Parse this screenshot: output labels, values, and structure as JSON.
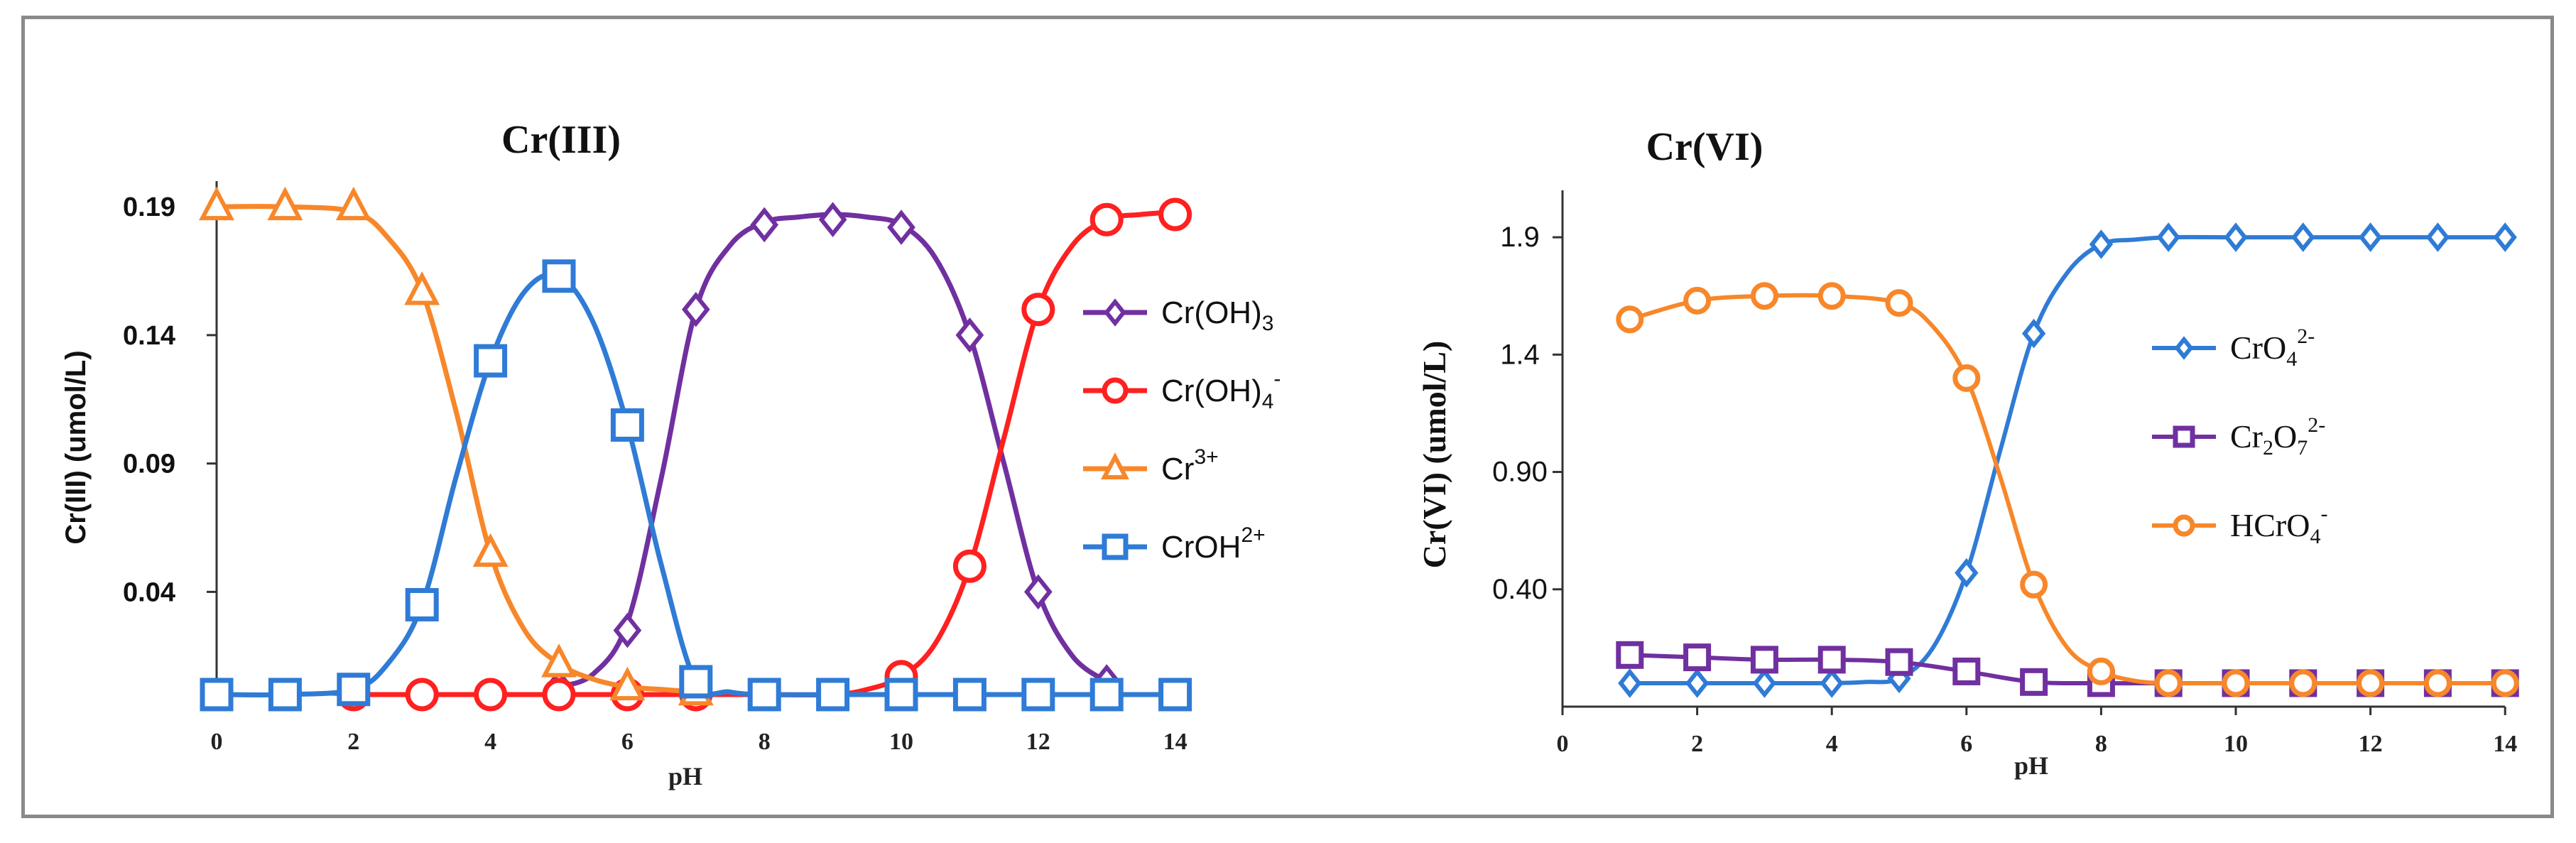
{
  "chart_data": [
    {
      "type": "line",
      "title": "Cr(III)",
      "xlabel": "pH",
      "ylabel": "Cr(III) (umol/L)",
      "xlim": [
        0,
        14
      ],
      "ylim": [
        0.0,
        0.2
      ],
      "x_ticks": [
        "0",
        "2",
        "4",
        "6",
        "8",
        "10",
        "12",
        "14"
      ],
      "y_ticks": [
        {
          "value": 0.04,
          "label": "0.04"
        },
        {
          "value": 0.09,
          "label": "0.09"
        },
        {
          "value": 0.14,
          "label": "0.14"
        },
        {
          "value": 0.19,
          "label": "0.19"
        }
      ],
      "legend_position": "right",
      "series": [
        {
          "name": "Cr(OH)3",
          "label_main": "Cr(OH)",
          "label_sub": "3",
          "label_sup": "",
          "color": "#7030a0",
          "marker": "diamond",
          "x": [
            0,
            1,
            2,
            3,
            4,
            5,
            6,
            7,
            8,
            9,
            10,
            11,
            12,
            13,
            14
          ],
          "y": [
            null,
            null,
            null,
            null,
            null,
            0.003,
            0.025,
            0.15,
            0.183,
            0.185,
            0.182,
            0.14,
            0.04,
            0.005,
            null
          ],
          "smooth_x": [
            5,
            5.5,
            6,
            6.5,
            7,
            7.5,
            8,
            8.5,
            9,
            9.5,
            10,
            10.5,
            11,
            11.5,
            12,
            12.5,
            13
          ],
          "smooth_y": [
            0.003,
            0.008,
            0.028,
            0.085,
            0.15,
            0.175,
            0.184,
            0.186,
            0.187,
            0.186,
            0.183,
            0.17,
            0.14,
            0.09,
            0.04,
            0.015,
            0.005
          ]
        },
        {
          "name": "Cr(OH)4-",
          "label_main": "Cr(OH)",
          "label_sub": "4",
          "label_sup": "-",
          "color": "#ff2020",
          "marker": "circle",
          "x": [
            0,
            1,
            2,
            3,
            4,
            5,
            6,
            7,
            8,
            9,
            10,
            11,
            12,
            13,
            14
          ],
          "y": [
            0,
            0,
            0,
            0,
            0,
            0,
            0,
            0,
            0,
            0,
            0.007,
            0.05,
            0.15,
            0.185,
            0.187
          ],
          "smooth_x": [
            2,
            3,
            4,
            5,
            6,
            7,
            8,
            9,
            9.5,
            10,
            10.5,
            11,
            11.5,
            12,
            12.5,
            13,
            13.5,
            14
          ],
          "smooth_y": [
            0,
            0,
            0,
            0,
            0,
            0,
            0,
            0,
            0.002,
            0.007,
            0.02,
            0.05,
            0.1,
            0.15,
            0.175,
            0.185,
            0.187,
            0.188
          ]
        },
        {
          "name": "Cr3+",
          "label_main": "Cr",
          "label_sub": "",
          "label_sup": "3+",
          "color": "#f7872a",
          "marker": "triangle",
          "x": [
            0,
            1,
            2,
            3,
            4,
            5,
            6,
            7,
            8,
            9,
            10,
            11,
            12,
            13,
            14
          ],
          "y": [
            0.19,
            0.19,
            0.19,
            0.157,
            0.055,
            0.012,
            0.003,
            0.001,
            null,
            null,
            null,
            null,
            null,
            null,
            null
          ],
          "smooth_x": [
            0,
            1,
            2,
            2.5,
            3,
            3.5,
            4,
            4.5,
            5,
            5.5,
            6,
            6.5,
            7
          ],
          "smooth_y": [
            0.19,
            0.19,
            0.188,
            0.178,
            0.157,
            0.11,
            0.055,
            0.025,
            0.012,
            0.006,
            0.003,
            0.002,
            0.001
          ]
        },
        {
          "name": "CrOH2+",
          "label_main": "CrOH",
          "label_sub": "",
          "label_sup": "2+",
          "color": "#2f7bd6",
          "marker": "square",
          "x": [
            0,
            1,
            2,
            3,
            4,
            5,
            6,
            7,
            8,
            9,
            10,
            11,
            12,
            13,
            14
          ],
          "y": [
            0,
            0,
            0.002,
            0.035,
            0.13,
            0.163,
            0.105,
            0.005,
            0,
            0,
            0,
            0,
            0,
            0,
            0
          ],
          "smooth_x": [
            0,
            1,
            2,
            2.5,
            3,
            3.5,
            4,
            4.5,
            5,
            5.5,
            6,
            6.5,
            7,
            7.5,
            8,
            9,
            10,
            11,
            12,
            13,
            14
          ],
          "smooth_y": [
            0,
            0,
            0.002,
            0.012,
            0.035,
            0.085,
            0.13,
            0.157,
            0.163,
            0.145,
            0.105,
            0.05,
            0.005,
            0.001,
            0,
            0,
            0,
            0,
            0,
            0,
            0
          ]
        }
      ]
    },
    {
      "type": "line",
      "title": "Cr(VI)",
      "xlabel": "pH",
      "ylabel": "Cr(VI) (umol/L)",
      "xlim": [
        0,
        14
      ],
      "ylim": [
        -0.1,
        2.1
      ],
      "x_ticks": [
        "0",
        "2",
        "4",
        "6",
        "8",
        "10",
        "12",
        "14"
      ],
      "y_ticks": [
        {
          "value": 0.4,
          "label": "0.40"
        },
        {
          "value": 0.9,
          "label": "0.90"
        },
        {
          "value": 1.4,
          "label": "1.4"
        },
        {
          "value": 1.9,
          "label": "1.9"
        }
      ],
      "legend_position": "right",
      "series": [
        {
          "name": "CrO4 2-",
          "label_main": "CrO",
          "label_sub": "4",
          "label_sup": "2-",
          "color": "#2f7bd6",
          "marker": "diamond",
          "x": [
            1,
            2,
            3,
            4,
            5,
            6,
            7,
            8,
            9,
            10,
            11,
            12,
            13,
            14
          ],
          "y": [
            0.0,
            0.0,
            0.0,
            0.0,
            0.02,
            0.47,
            1.49,
            1.87,
            1.9,
            1.9,
            1.9,
            1.9,
            1.9,
            1.9
          ],
          "smooth_x": [
            1,
            2,
            3,
            4,
            4.5,
            5,
            5.5,
            6,
            6.5,
            7,
            7.5,
            8,
            8.5,
            9,
            10,
            11,
            12,
            13,
            14
          ],
          "smooth_y": [
            0.0,
            0.0,
            0.0,
            0.0,
            0.005,
            0.02,
            0.15,
            0.47,
            0.99,
            1.49,
            1.75,
            1.87,
            1.89,
            1.9,
            1.9,
            1.9,
            1.9,
            1.9,
            1.9
          ]
        },
        {
          "name": "Cr2O7 2-",
          "label_main": "Cr",
          "label_sub": "2",
          "label_mid": "O",
          "label_sub2": "7",
          "label_sup": "2-",
          "color": "#7030a0",
          "marker": "square",
          "x": [
            1,
            2,
            3,
            4,
            5,
            6,
            7,
            8,
            9,
            10,
            11,
            12,
            13,
            14
          ],
          "y": [
            0.12,
            0.11,
            0.1,
            0.1,
            0.09,
            0.05,
            0.005,
            0.0,
            0.0,
            0.0,
            0.0,
            0.0,
            0.0,
            0.0
          ],
          "smooth_x": [
            1,
            2,
            3,
            4,
            5,
            6,
            7,
            8,
            9,
            10,
            11,
            12,
            13,
            14
          ],
          "smooth_y": [
            0.12,
            0.11,
            0.1,
            0.1,
            0.09,
            0.05,
            0.005,
            0.0,
            0.0,
            0.0,
            0.0,
            0.0,
            0.0,
            0.0
          ]
        },
        {
          "name": "HCrO4-",
          "label_main": "HCrO",
          "label_sub": "4",
          "label_sup": "-",
          "color": "#f7872a",
          "marker": "circle",
          "x": [
            1,
            2,
            3,
            4,
            5,
            6,
            7,
            8,
            9,
            10,
            11,
            12,
            13,
            14
          ],
          "y": [
            1.55,
            1.63,
            1.65,
            1.65,
            1.62,
            1.3,
            0.42,
            0.05,
            0.0,
            0.0,
            0.0,
            0.0,
            0.0,
            0.0
          ],
          "smooth_x": [
            1,
            2,
            3,
            4,
            5,
            5.5,
            6,
            6.5,
            7,
            7.5,
            8,
            8.5,
            9,
            10,
            11,
            12,
            13,
            14
          ],
          "smooth_y": [
            1.55,
            1.63,
            1.65,
            1.65,
            1.62,
            1.52,
            1.3,
            0.88,
            0.42,
            0.15,
            0.05,
            0.01,
            0.0,
            0.0,
            0.0,
            0.0,
            0.0,
            0.0
          ]
        }
      ]
    }
  ]
}
